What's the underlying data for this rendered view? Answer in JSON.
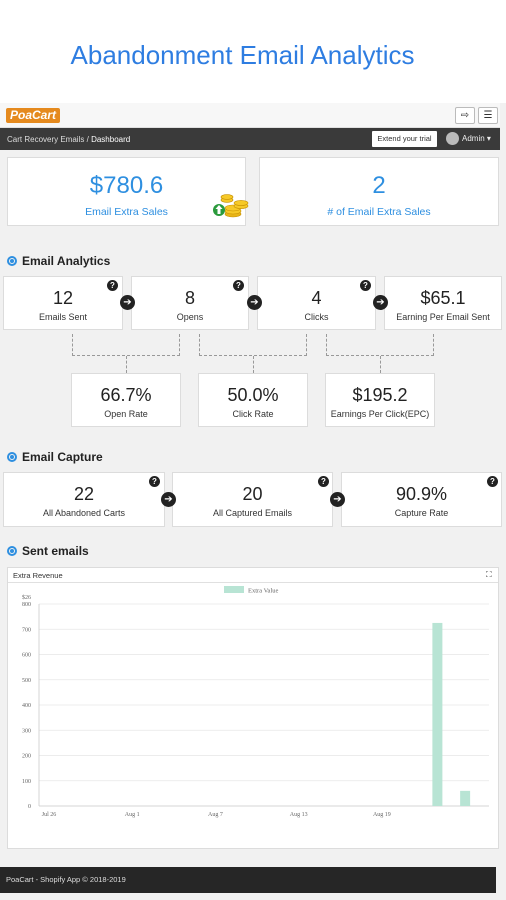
{
  "hero": {
    "title": "Abandonment Email Analytics"
  },
  "topbar": {
    "logo": "PoaCart",
    "logout_icon": "sign-out-icon",
    "menu_icon": "hamburger-icon"
  },
  "breadcrumb": {
    "parent": "Cart Recovery Emails",
    "separator": "/",
    "current": "Dashboard"
  },
  "header": {
    "trial_button": "Extend your trial",
    "user": "Admin"
  },
  "summary": {
    "extra_sales": {
      "value": "$780.6",
      "label": "Email Extra Sales"
    },
    "extra_sales_count": {
      "value": "2",
      "label": "# of Email Extra Sales"
    }
  },
  "email_analytics": {
    "title": "Email Analytics",
    "metrics": [
      {
        "value": "12",
        "label": "Emails Sent"
      },
      {
        "value": "8",
        "label": "Opens"
      },
      {
        "value": "4",
        "label": "Clicks"
      },
      {
        "value": "$65.1",
        "label": "Earning Per Email Sent"
      }
    ],
    "rates": [
      {
        "value": "66.7%",
        "label": "Open Rate"
      },
      {
        "value": "50.0%",
        "label": "Click Rate"
      },
      {
        "value": "$195.2",
        "label": "Earnings Per Click(EPC)"
      }
    ]
  },
  "email_capture": {
    "title": "Email Capture",
    "metrics": [
      {
        "value": "22",
        "label": "All Abandoned Carts"
      },
      {
        "value": "20",
        "label": "All Captured Emails"
      },
      {
        "value": "90.9%",
        "label": "Capture Rate"
      }
    ]
  },
  "sent_emails": {
    "title": "Sent emails",
    "panel_title": "Extra Revenue"
  },
  "chart_data": {
    "type": "bar",
    "legend": "Extra Value",
    "legend_position": "top",
    "color": "#b8e4d4",
    "ylim": [
      0,
      800
    ],
    "y_ticks": [
      0,
      100,
      200,
      300,
      400,
      500,
      600,
      700,
      800
    ],
    "y_top_label": "$26",
    "x_tick_labels": [
      "Jul 26",
      "Aug 1",
      "Aug 7",
      "Aug 13",
      "Aug 19"
    ],
    "x_tick_days": [
      0,
      6,
      12,
      18,
      24
    ],
    "x_range_days": [
      0,
      31
    ],
    "bars": [
      {
        "day": 28,
        "value": 725
      },
      {
        "day": 30,
        "value": 60
      }
    ]
  },
  "footer": {
    "text": "PoaCart - Shopify App © 2018-2019"
  }
}
